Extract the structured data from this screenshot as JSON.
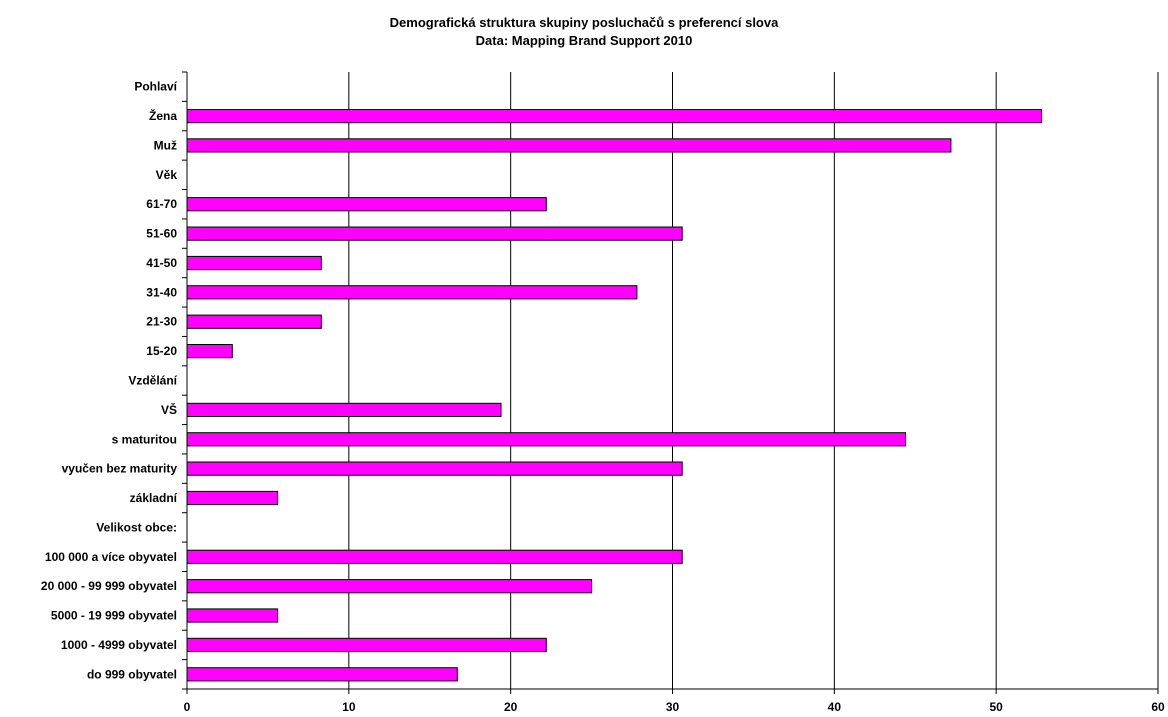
{
  "chart_data": {
    "type": "bar",
    "orientation": "horizontal",
    "title": "Demografická struktura skupiny posluchačů s preferencí slova",
    "subtitle": "Data: Mapping Brand Support 2010",
    "categories": [
      "Pohlaví",
      "Žena",
      "Muž",
      "Věk",
      "61-70",
      "51-60",
      "41-50",
      "31-40",
      "21-30",
      "15-20",
      "Vzdělání",
      "VŠ",
      "s maturitou",
      "vyučen bez maturity",
      "základní",
      "Velikost obce:",
      "100 000 a více obyvatel",
      "20 000 - 99 999 obyvatel",
      "5000 - 19 999 obyvatel",
      "1000 - 4999 obyvatel",
      "do 999 obyvatel"
    ],
    "values": [
      null,
      52.8,
      47.2,
      null,
      22.2,
      30.6,
      8.3,
      27.8,
      8.3,
      2.8,
      null,
      19.4,
      44.4,
      30.6,
      5.6,
      null,
      30.6,
      25.0,
      5.6,
      22.2,
      16.7
    ],
    "xlim": [
      0,
      60
    ],
    "xticks": [
      0,
      10,
      20,
      30,
      40,
      50,
      60
    ],
    "grid": true,
    "legend": "none",
    "bar_color": "#FF00FF"
  }
}
